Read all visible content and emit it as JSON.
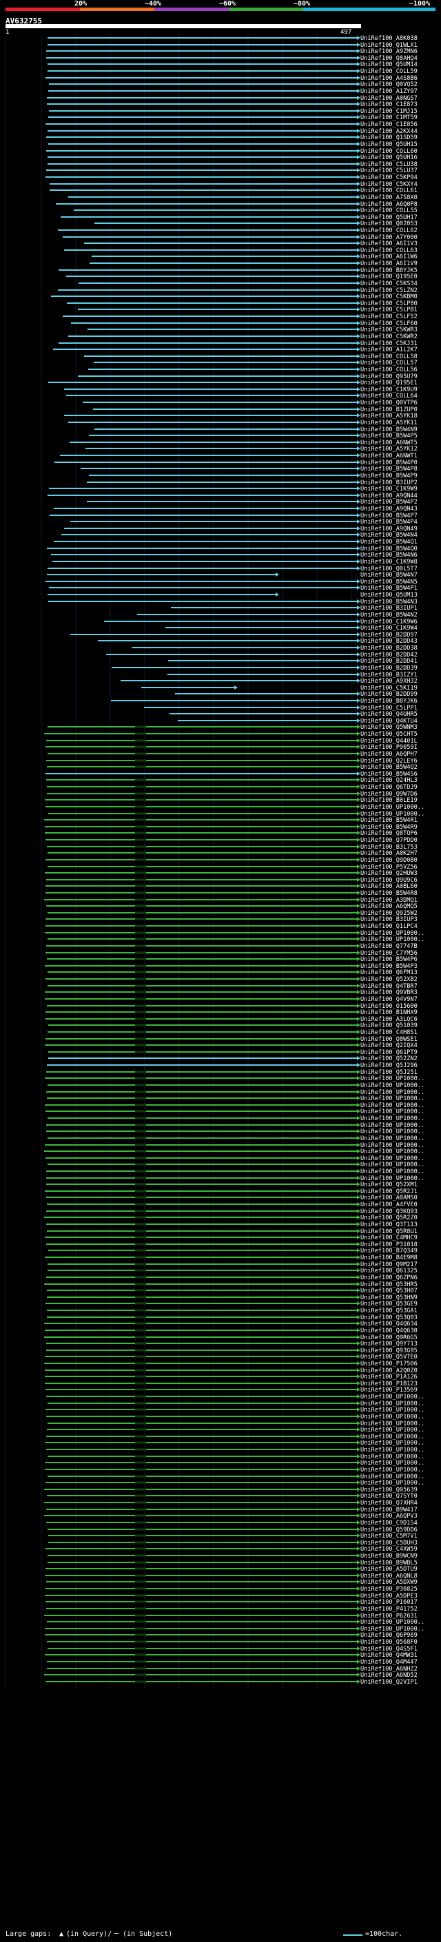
{
  "scale": {
    "marks": [
      "20%",
      "~40%",
      "~60%",
      "~80%",
      "~100%"
    ],
    "colors": [
      "#e8202a",
      "#f07020",
      "#9a40c0",
      "#38a838",
      "#19b8d8"
    ]
  },
  "query": {
    "id": "AV632755",
    "start": "1",
    "end": "497"
  },
  "colors": {
    "cyan": "#5fd0e8",
    "green": "#3cb83c",
    "dark": "#0f3a0f",
    "white": "#ffffff"
  },
  "hits": [
    "UniRef100_A8K038",
    "UniRef100_Q1WLX1",
    "UniRef100_A9ZMN6",
    "UniRef100_Q8AHQ4",
    "UniRef100_Q5UM14",
    "UniRef100_COLL59",
    "UniRef100_A4S8B6",
    "UniRef100_Q0VQ52",
    "UniRef100_A1ZY97",
    "UniRef100_A0NGS7",
    "UniRef100_C1E873",
    "UniRef100_C1MJ15",
    "UniRef100_C1MT59",
    "UniRef100_C1E856",
    "UniRef100_A2KX44",
    "UniRef100_Q1SD59",
    "UniRef100_Q5UH15",
    "UniRef100_COLL60",
    "UniRef100_Q5UH16",
    "UniRef100_C5LU38",
    "UniRef100_C5LU37",
    "UniRef100_C5KP94",
    "UniRef100_C5KXY4",
    "UniRef100_COLL61",
    "UniRef100_A7S8X0",
    "UniRef100_A6Q0P8",
    "UniRef100_COLL55",
    "UniRef100_Q5UH17",
    "UniRef100_Q02053",
    "UniRef100_COLL62",
    "UniRef100_A7Y000",
    "UniRef100_A6I1V3",
    "UniRef100_COLL63",
    "UniRef100_A6I1W6",
    "UniRef100_A6I1V9",
    "UniRef100_B8YJK5",
    "UniRef100_Q195E0",
    "UniRef100_C5KS34",
    "UniRef100_C5LZN2",
    "UniRef100_C5KBM0",
    "UniRef100_C5LP80",
    "UniRef100_C5LPB1",
    "UniRef100_C5LF52",
    "UniRef100_C5LF60",
    "UniRef100_C5KWR3",
    "UniRef100_C5KWR2",
    "UniRef100_C5KJ31",
    "UniRef100_A1L2K7",
    "UniRef100_COLL58",
    "UniRef100_COLL57",
    "UniRef100_COLL56",
    "UniRef100_Q95U79",
    "UniRef100_Q195E1",
    "UniRef100_C1K9U9",
    "UniRef100_COLL64",
    "UniRef100_Q0VTP6",
    "UniRef100_B1ZUP0",
    "UniRef100_A5YK18",
    "UniRef100_A5YK11",
    "UniRef100_B5W4N9",
    "UniRef100_B5W4P5",
    "UniRef100_A6NWT5",
    "UniRef100_A5YK12",
    "UniRef100_A6NWT1",
    "UniRef100_B5W4P0",
    "UniRef100_B5W4P8",
    "UniRef100_B5W4P9",
    "UniRef100_B3IUP2",
    "UniRef100_C1K9W9",
    "UniRef100_A9QN44",
    "UniRef100_B5W4P2",
    "UniRef100_A9QN43",
    "UniRef100_B5W4P7",
    "UniRef100_B5W4P4",
    "UniRef100_A9QN49",
    "UniRef100_B5W4N4",
    "UniRef100_B5W4Q1",
    "UniRef100_B5W4Q0",
    "UniRef100_B5W4N6",
    "UniRef100_C1K9W8",
    "UniRef100_Q0L5T7",
    "UniRef100_B5W4N7",
    "UniRef100_B5W4N5",
    "UniRef100_B5W4P1",
    "UniRef100_Q5UM13",
    "UniRef100_B5W4N3",
    "UniRef100_B3IUP1",
    "UniRef100_B5W4N2",
    "UniRef100_C1K9W6",
    "UniRef100_C1K9W4",
    "UniRef100_B2DD97",
    "UniRef100_B2DD43",
    "UniRef100_B2DD38",
    "UniRef100_B2DD42",
    "UniRef100_B2DD41",
    "UniRef100_B2DD39",
    "UniRef100_B3IZY1",
    "UniRef100_A9XH32",
    "UniRef100_C5KI19",
    "UniRef100_B2DD99",
    "UniRef100_B8YJK6",
    "UniRef100_C5LPP1",
    "UniRef100_Q4UHR5",
    "UniRef100_Q4KTU4",
    "UniRef100_Q5WNM3",
    "UniRef100_Q5CHT5",
    "UniRef100_Q4401L",
    "UniRef100_P9059I",
    "UniRef100_A6QPH7",
    "UniRef100_Q2LEY6",
    "UniRef100_B5W4Q2",
    "UniRef100_B5W4S6",
    "UniRef100_Q24HL3",
    "UniRef100_Q6TDJ9",
    "UniRef100_Q9W7D6",
    "UniRef100_B0LE19",
    "UniRef100_UP1000..",
    "UniRef100_UP1000..",
    "UniRef100_B5W4R1",
    "UniRef100_B5W4R9",
    "UniRef100_Q8TOP6",
    "UniRef100_Q7PDD0",
    "UniRef100_B3L753",
    "UniRef100_A0K2H7",
    "UniRef100_Q9D0B0",
    "UniRef100_P5VZ56",
    "UniRef100_Q2HUW3",
    "UniRef100_Q9U9C6",
    "UniRef100_A0BL60",
    "UniRef100_B5W4R8",
    "UniRef100_A3DMQ1",
    "UniRef100_A6QMQ5",
    "UniRef100_Q925W2",
    "UniRef100_B3IUP3",
    "UniRef100_Q1LPC4",
    "UniRef100_UP1000..",
    "UniRef100_UP1000..",
    "UniRef100_Q7747B",
    "UniRef100_C7YM56",
    "UniRef100_B5W4P6",
    "UniRef100_B5W4P3",
    "UniRef100_Q6FM13",
    "UniRef100_Q52XB2",
    "UniRef100_Q4TBR7",
    "UniRef100_Q9VBR3",
    "UniRef100_Q4V9N7",
    "UniRef100_O15600",
    "UniRef100_B1NHX9",
    "UniRef100_A3LQC6",
    "UniRef100_Q51039",
    "UniRef100_C4H8S1",
    "UniRef100_Q8WSE1",
    "UniRef100_Q2IQX4",
    "UniRef100_Q61PT9",
    "UniRef100_Q52ZN2",
    "UniRef100_Q5J296",
    "UniRef100_Q5J251",
    "UniRef100_UP1000..",
    "UniRef100_UP1000..",
    "UniRef100_UP1000..",
    "UniRef100_UP1000..",
    "UniRef100_UP1000..",
    "UniRef100_UP1000..",
    "UniRef100_UP1000..",
    "UniRef100_UP1000..",
    "UniRef100_UP1000..",
    "UniRef100_UP1000..",
    "UniRef100_UP1000..",
    "UniRef100_UP1000..",
    "UniRef100_UP1000..",
    "UniRef100_UP1000..",
    "UniRef100_UP1000..",
    "UniRef100_UP1000..",
    "UniRef100_Q52XM1",
    "UniRef100_Q5R2J1",
    "UniRef100_A0AMS0",
    "UniRef100_A4FVE0",
    "UniRef100_Q3KQ93",
    "UniRef100_Q5R2Z0",
    "UniRef100_Q3T113",
    "UniRef100_Q5R8U1",
    "UniRef100_C4MHC9",
    "UniRef100_P31018",
    "UniRef100_B7Q349",
    "UniRef100_B4E9M8",
    "UniRef100_Q9M217",
    "UniRef100_Q61325",
    "UniRef100_Q6ZPN6",
    "UniRef100_Q53HR5",
    "UniRef100_Q53H07",
    "UniRef100_Q53HN9",
    "UniRef100_Q53GE9",
    "UniRef100_Q53GA1",
    "UniRef100_Q53Q03",
    "UniRef100_Q4Q634",
    "UniRef100_Q4Q630",
    "UniRef100_Q9R6G5",
    "UniRef100_Q9Y713",
    "UniRef100_Q93G95",
    "UniRef100_Q5VTE0",
    "UniRef100_P17506",
    "UniRef100_A2Q0Z0",
    "UniRef100_P1A126",
    "UniRef100_P1B123",
    "UniRef100_P13569",
    "UniRef100_UP1000..",
    "UniRef100_UP1000..",
    "UniRef100_UP1000..",
    "UniRef100_UP1000..",
    "UniRef100_UP1000..",
    "UniRef100_UP1000..",
    "UniRef100_UP1000..",
    "UniRef100_UP1000..",
    "UniRef100_UP1000..",
    "UniRef100_UP1000..",
    "UniRef100_UP1000..",
    "UniRef100_UP1000..",
    "UniRef100_UP1000..",
    "UniRef100_UP1000..",
    "UniRef100_Q05639",
    "UniRef100_Q7SYT0",
    "UniRef100_Q7XHR4",
    "UniRef100_B9W417",
    "UniRef100_A6QPV3",
    "UniRef100_C9D1S4",
    "UniRef100_Q59DD6",
    "UniRef100_C5M7V1",
    "UniRef100_C5DUH3",
    "UniRef100_C4XW59",
    "UniRef100_B9WCN9",
    "UniRef100_B9WBL5",
    "UniRef100_A5DTU9",
    "UniRef100_A6QNL8",
    "UniRef100_A5DXW9",
    "UniRef100_P36825",
    "UniRef100_A5DPE3",
    "UniRef100_P16017",
    "UniRef100_P41752",
    "UniRef100_P62631",
    "UniRef100_UP1000..",
    "UniRef100_UP1000..",
    "UniRef100_Q6P969",
    "UniRef100_Q568F0",
    "UniRef100_Q4S5F1",
    "UniRef100_Q4MW31",
    "UniRef100_Q4M447",
    "UniRef100_A6NHZ2",
    "UniRef100_A6ND52",
    "UniRef100_Q2VIP1"
  ],
  "legend": {
    "prefix": "Large gaps:",
    "q_marker": "▲",
    "q_text": "(in Query)/",
    "s_marker": "─",
    "s_text": "(in Subject)",
    "scale_text": "=100char."
  }
}
